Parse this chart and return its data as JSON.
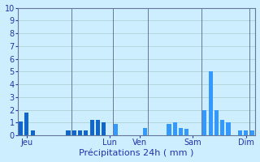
{
  "title": "",
  "xlabel": "Précipitations 24h ( mm )",
  "ylabel": "",
  "ylim": [
    0,
    10
  ],
  "yticks": [
    0,
    1,
    2,
    3,
    4,
    5,
    6,
    7,
    8,
    9,
    10
  ],
  "background_color": "#cceeff",
  "bar_color": "#1166cc",
  "bar_color2": "#3399ff",
  "grid_color": "#aacccc",
  "text_color": "#2233aa",
  "day_labels": [
    "Jeu",
    "Lun",
    "Ven",
    "Sam",
    "Dim"
  ],
  "n_bars": 40,
  "values": [
    1.1,
    1.8,
    0.4,
    0.0,
    0.0,
    0.0,
    0.0,
    0.0,
    0.4,
    0.4,
    0.4,
    0.4,
    1.2,
    1.2,
    1.0,
    0.0,
    0.9,
    0.0,
    0.0,
    0.0,
    0.0,
    0.6,
    0.0,
    0.0,
    0.0,
    0.9,
    1.0,
    0.6,
    0.5,
    0.0,
    0.0,
    2.0,
    5.0,
    2.0,
    1.2,
    1.0,
    0.0,
    0.4,
    0.4,
    0.4
  ],
  "day_tick_positions": [
    1,
    15,
    20,
    29,
    38
  ],
  "vline_x": [
    8.5,
    15.5,
    21.5,
    30.5,
    38.5
  ],
  "vline_color": "#667799"
}
